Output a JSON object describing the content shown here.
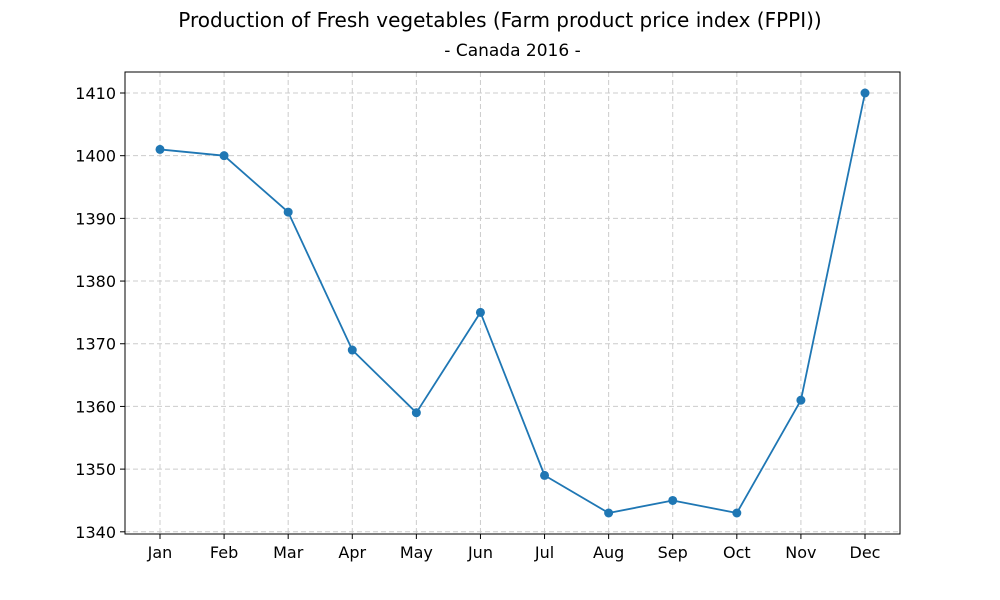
{
  "chart_data": {
    "type": "line",
    "title": "Production of Fresh vegetables (Farm product price index (FPPI))",
    "subtitle": "- Canada 2016 -",
    "xlabel": "",
    "ylabel": "",
    "categories": [
      "Jan",
      "Feb",
      "Mar",
      "Apr",
      "May",
      "Jun",
      "Jul",
      "Aug",
      "Sep",
      "Oct",
      "Nov",
      "Dec"
    ],
    "series": [
      {
        "values": [
          1401,
          1400,
          1391,
          1369,
          1359,
          1375,
          1349,
          1343,
          1345,
          1343,
          1361,
          1410
        ],
        "color": "#1f77b4"
      }
    ],
    "ylim": [
      1339.65,
      1413.35
    ],
    "yticks": [
      1340,
      1350,
      1360,
      1370,
      1380,
      1390,
      1400,
      1410
    ],
    "grid": true,
    "marker": "circle"
  }
}
